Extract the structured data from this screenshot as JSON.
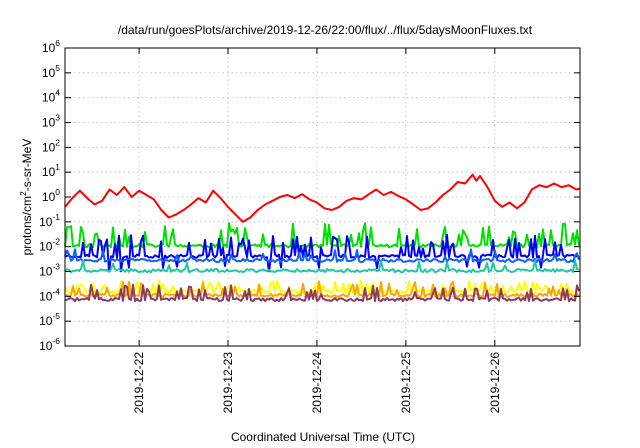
{
  "chart_data": {
    "type": "line",
    "title": "/data/run/goesPlots/archive/2019-12-26/22:00/flux/../flux/5daysMoonFluxes.txt",
    "xlabel": "Coordinated Universal Time (UTC)",
    "ylabel": "protons/cm²-s-sr-MeV",
    "y_scale": "log",
    "ylim": [
      1e-06,
      1000000.0
    ],
    "y_ticks": [
      {
        "value": -6,
        "base": "10",
        "exp": "-6"
      },
      {
        "value": -5,
        "base": "10",
        "exp": "-5"
      },
      {
        "value": -4,
        "base": "10",
        "exp": "-4"
      },
      {
        "value": -3,
        "base": "10",
        "exp": "-3"
      },
      {
        "value": -2,
        "base": "10",
        "exp": "-2"
      },
      {
        "value": -1,
        "base": "10",
        "exp": "-1"
      },
      {
        "value": 0,
        "base": "10",
        "exp": "0"
      },
      {
        "value": 1,
        "base": "10",
        "exp": "1"
      },
      {
        "value": 2,
        "base": "10",
        "exp": "2"
      },
      {
        "value": 3,
        "base": "10",
        "exp": "3"
      },
      {
        "value": 4,
        "base": "10",
        "exp": "4"
      },
      {
        "value": 5,
        "base": "10",
        "exp": "5"
      },
      {
        "value": 6,
        "base": "10",
        "exp": "6"
      }
    ],
    "xlim": [
      "2019-12-21T04:00",
      "2019-12-26T23:00"
    ],
    "x_ticks": [
      "2019-12-22",
      "2019-12-23",
      "2019-12-24",
      "2019-12-25",
      "2019-12-26"
    ],
    "grid": true,
    "series": [
      {
        "color": "#ff0000",
        "points": [
          [
            "2019-12-21T04:00",
            0.4
          ],
          [
            "2019-12-21T06:00",
            0.9
          ],
          [
            "2019-12-21T08:00",
            1.8
          ],
          [
            "2019-12-21T10:00",
            0.9
          ],
          [
            "2019-12-21T12:00",
            0.5
          ],
          [
            "2019-12-21T14:00",
            0.7
          ],
          [
            "2019-12-21T16:00",
            2.0
          ],
          [
            "2019-12-21T18:00",
            1.2
          ],
          [
            "2019-12-21T20:00",
            2.5
          ],
          [
            "2019-12-21T22:00",
            1.0
          ],
          [
            "2019-12-22T00:00",
            1.8
          ],
          [
            "2019-12-22T02:00",
            1.2
          ],
          [
            "2019-12-22T04:00",
            0.8
          ],
          [
            "2019-12-22T06:00",
            0.3
          ],
          [
            "2019-12-22T08:00",
            0.15
          ],
          [
            "2019-12-22T10:00",
            0.2
          ],
          [
            "2019-12-22T12:00",
            0.3
          ],
          [
            "2019-12-22T14:00",
            0.5
          ],
          [
            "2019-12-22T16:00",
            0.9
          ],
          [
            "2019-12-22T18:00",
            0.6
          ],
          [
            "2019-12-22T20:00",
            1.8
          ],
          [
            "2019-12-22T22:00",
            0.9
          ],
          [
            "2019-12-23T00:00",
            0.4
          ],
          [
            "2019-12-23T02:00",
            0.2
          ],
          [
            "2019-12-23T04:00",
            0.1
          ],
          [
            "2019-12-23T06:00",
            0.15
          ],
          [
            "2019-12-23T08:00",
            0.3
          ],
          [
            "2019-12-23T10:00",
            0.5
          ],
          [
            "2019-12-23T12:00",
            0.7
          ],
          [
            "2019-12-23T14:00",
            1.0
          ],
          [
            "2019-12-23T16:00",
            1.2
          ],
          [
            "2019-12-23T18:00",
            0.9
          ],
          [
            "2019-12-23T20:00",
            1.3
          ],
          [
            "2019-12-23T22:00",
            0.8
          ],
          [
            "2019-12-24T00:00",
            0.6
          ],
          [
            "2019-12-24T02:00",
            0.35
          ],
          [
            "2019-12-24T04:00",
            0.3
          ],
          [
            "2019-12-24T06:00",
            0.4
          ],
          [
            "2019-12-24T08:00",
            0.7
          ],
          [
            "2019-12-24T10:00",
            0.9
          ],
          [
            "2019-12-24T12:00",
            0.8
          ],
          [
            "2019-12-24T14:00",
            1.3
          ],
          [
            "2019-12-24T16:00",
            2.0
          ],
          [
            "2019-12-24T18:00",
            1.2
          ],
          [
            "2019-12-24T20:00",
            1.6
          ],
          [
            "2019-12-24T22:00",
            1.1
          ],
          [
            "2019-12-25T00:00",
            0.8
          ],
          [
            "2019-12-25T02:00",
            0.5
          ],
          [
            "2019-12-25T04:00",
            0.3
          ],
          [
            "2019-12-25T06:00",
            0.35
          ],
          [
            "2019-12-25T08:00",
            0.6
          ],
          [
            "2019-12-25T10:00",
            1.2
          ],
          [
            "2019-12-25T12:00",
            2.0
          ],
          [
            "2019-12-25T14:00",
            4.0
          ],
          [
            "2019-12-25T16:00",
            3.5
          ],
          [
            "2019-12-25T18:00",
            8.0
          ],
          [
            "2019-12-25T19:00",
            4.5
          ],
          [
            "2019-12-25T20:00",
            7.0
          ],
          [
            "2019-12-25T22:00",
            2.5
          ],
          [
            "2019-12-26T00:00",
            0.7
          ],
          [
            "2019-12-26T02:00",
            0.4
          ],
          [
            "2019-12-26T04:00",
            0.6
          ],
          [
            "2019-12-26T06:00",
            0.35
          ],
          [
            "2019-12-26T08:00",
            0.6
          ],
          [
            "2019-12-26T10:00",
            2.0
          ],
          [
            "2019-12-26T12:00",
            3.0
          ],
          [
            "2019-12-26T14:00",
            2.5
          ],
          [
            "2019-12-26T16:00",
            3.5
          ],
          [
            "2019-12-26T18:00",
            2.5
          ],
          [
            "2019-12-26T20:00",
            3.0
          ],
          [
            "2019-12-26T22:00",
            2.0
          ],
          [
            "2019-12-26T23:00",
            2.2
          ]
        ]
      },
      {
        "color": "#00e000",
        "baseline": 0.011,
        "spike_peak": 0.09,
        "spike_prob": 0.45,
        "seed": 11
      },
      {
        "color": "#0000ff",
        "baseline": 0.0042,
        "spike_peak": 0.03,
        "spike_prob": 0.35,
        "dip": 0.0012,
        "seed": 23
      },
      {
        "color": "#1060ff",
        "baseline": 0.0028,
        "spike_peak": 0.008,
        "spike_prob": 0.2,
        "seed": 31
      },
      {
        "color": "#20c8a0",
        "baseline": 0.0011,
        "spike_peak": 0.003,
        "spike_prob": 0.15,
        "seed": 41
      },
      {
        "color": "#ffff00",
        "baseline": 0.00016,
        "spike_peak": 0.00045,
        "spike_prob": 0.35,
        "seed": 53
      },
      {
        "color": "#ffa500",
        "baseline": 0.00011,
        "spike_peak": 0.0004,
        "spike_prob": 0.3,
        "seed": 61
      },
      {
        "color": "#8b3a62",
        "baseline": 7.5e-05,
        "spike_peak": 0.0003,
        "spike_prob": 0.4,
        "seed": 71
      }
    ]
  }
}
